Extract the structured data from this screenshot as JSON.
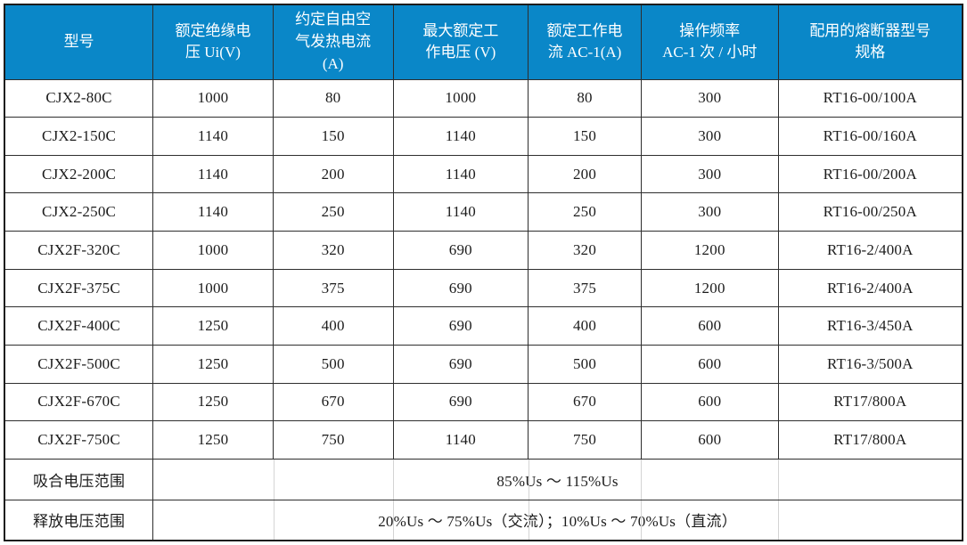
{
  "colors": {
    "header_bg": "#0a87c8",
    "header_text": "#ffffff",
    "border_dark": "#2e2e2e",
    "body_text": "#1c1c1c",
    "faint_line": "#d4d4d4"
  },
  "table": {
    "header": {
      "columns": [
        {
          "label": "型号"
        },
        {
          "label": "额定绝缘电\n压 Ui(V)"
        },
        {
          "label": "约定自由空\n气发热电流\n(A)"
        },
        {
          "label": "最大额定工\n作电压 (V)"
        },
        {
          "label": "额定工作电\n流 AC-1(A)"
        },
        {
          "label": "操作频率\nAC-1 次 / 小时"
        },
        {
          "label": "配用的熔断器型号\n规格"
        }
      ]
    },
    "rows": [
      {
        "model": "CJX2-80C",
        "values": [
          "1000",
          "80",
          "1000",
          "80",
          "300",
          "RT16-00/100A"
        ]
      },
      {
        "model": "CJX2-150C",
        "values": [
          "1140",
          "150",
          "1140",
          "150",
          "300",
          "RT16-00/160A"
        ]
      },
      {
        "model": "CJX2-200C",
        "values": [
          "1140",
          "200",
          "1140",
          "200",
          "300",
          "RT16-00/200A"
        ]
      },
      {
        "model": "CJX2-250C",
        "values": [
          "1140",
          "250",
          "1140",
          "250",
          "300",
          "RT16-00/250A"
        ]
      },
      {
        "model": "CJX2F-320C",
        "values": [
          "1000",
          "320",
          "690",
          "320",
          "1200",
          "RT16-2/400A"
        ]
      },
      {
        "model": "CJX2F-375C",
        "values": [
          "1000",
          "375",
          "690",
          "375",
          "1200",
          "RT16-2/400A"
        ]
      },
      {
        "model": "CJX2F-400C",
        "values": [
          "1250",
          "400",
          "690",
          "400",
          "600",
          "RT16-3/450A"
        ]
      },
      {
        "model": "CJX2F-500C",
        "values": [
          "1250",
          "500",
          "690",
          "500",
          "600",
          "RT16-3/500A"
        ]
      },
      {
        "model": "CJX2F-670C",
        "values": [
          "1250",
          "670",
          "690",
          "670",
          "600",
          "RT17/800A"
        ]
      },
      {
        "model": "CJX2F-750C",
        "values": [
          "1250",
          "750",
          "1140",
          "750",
          "600",
          "RT17/800A"
        ]
      }
    ],
    "footer_rows": [
      {
        "label": "吸合电压范围",
        "value": "85%Us ～ 115%Us"
      },
      {
        "label": "释放电压范围",
        "value": "20%Us ～ 75%Us（交流）；10%Us ～ 70%Us（直流）"
      }
    ]
  }
}
